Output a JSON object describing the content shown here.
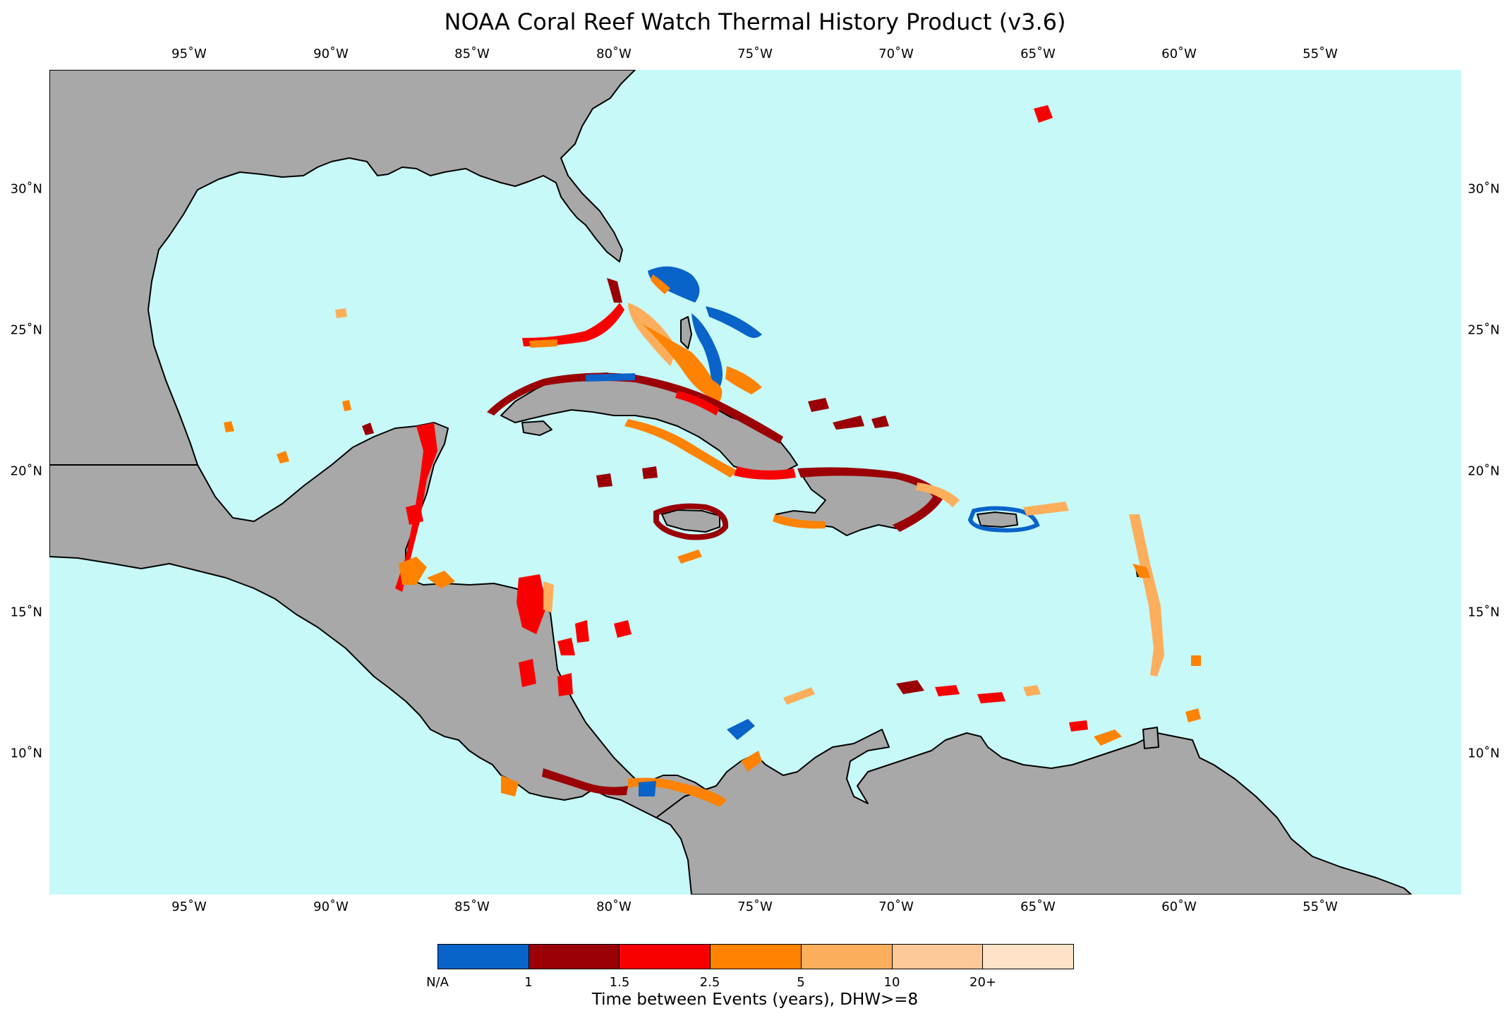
{
  "title": "NOAA Coral Reef Watch Thermal History Product (v3.6)",
  "lon_ticks": [
    "95˚W",
    "90˚W",
    "85˚W",
    "80˚W",
    "75˚W",
    "70˚W",
    "65˚W",
    "60˚W",
    "55˚W"
  ],
  "lat_ticks": [
    "30˚N",
    "25˚N",
    "20˚N",
    "15˚N",
    "10˚N"
  ],
  "map": {
    "ocean_color": "#c7f9f8",
    "land_color": "#a8a8a8",
    "coast_color": "#000000"
  },
  "colorbar": {
    "title": "Time between Events (years), DHW>=8",
    "labels": [
      "N/A",
      "1",
      "1.5",
      "2.5",
      "5",
      "10",
      "20+"
    ],
    "colors": [
      "#0a63c9",
      "#9a0006",
      "#f90000",
      "#ff8200",
      "#fcae5c",
      "#fec998",
      "#ffe3c8"
    ]
  }
}
